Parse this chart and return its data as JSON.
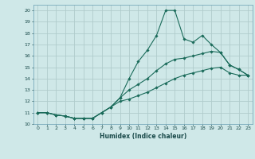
{
  "title": "",
  "xlabel": "Humidex (Indice chaleur)",
  "ylabel": "",
  "xlim": [
    -0.5,
    23.5
  ],
  "ylim": [
    10,
    20.5
  ],
  "xticks": [
    0,
    1,
    2,
    3,
    4,
    5,
    6,
    7,
    8,
    9,
    10,
    11,
    12,
    13,
    14,
    15,
    16,
    17,
    18,
    19,
    20,
    21,
    22,
    23
  ],
  "yticks": [
    10,
    11,
    12,
    13,
    14,
    15,
    16,
    17,
    18,
    19,
    20
  ],
  "background_color": "#cfe8e8",
  "grid_color": "#b0cccc",
  "line_color": "#1a6b5a",
  "series1": [
    11.0,
    11.0,
    10.8,
    10.7,
    10.5,
    10.5,
    10.5,
    11.0,
    11.5,
    12.3,
    14.0,
    15.5,
    16.5,
    17.8,
    20.0,
    20.0,
    17.5,
    17.2,
    17.8,
    17.0,
    16.3,
    15.2,
    14.8,
    14.3
  ],
  "series2": [
    11.0,
    11.0,
    10.8,
    10.7,
    10.5,
    10.5,
    10.5,
    11.0,
    11.5,
    12.3,
    13.0,
    13.5,
    14.0,
    14.7,
    15.3,
    15.7,
    15.8,
    16.0,
    16.2,
    16.4,
    16.3,
    15.2,
    14.8,
    14.3
  ],
  "series3": [
    11.0,
    11.0,
    10.8,
    10.7,
    10.5,
    10.5,
    10.5,
    11.0,
    11.5,
    12.0,
    12.2,
    12.5,
    12.8,
    13.2,
    13.6,
    14.0,
    14.3,
    14.5,
    14.7,
    14.9,
    15.0,
    14.5,
    14.3,
    14.3
  ]
}
